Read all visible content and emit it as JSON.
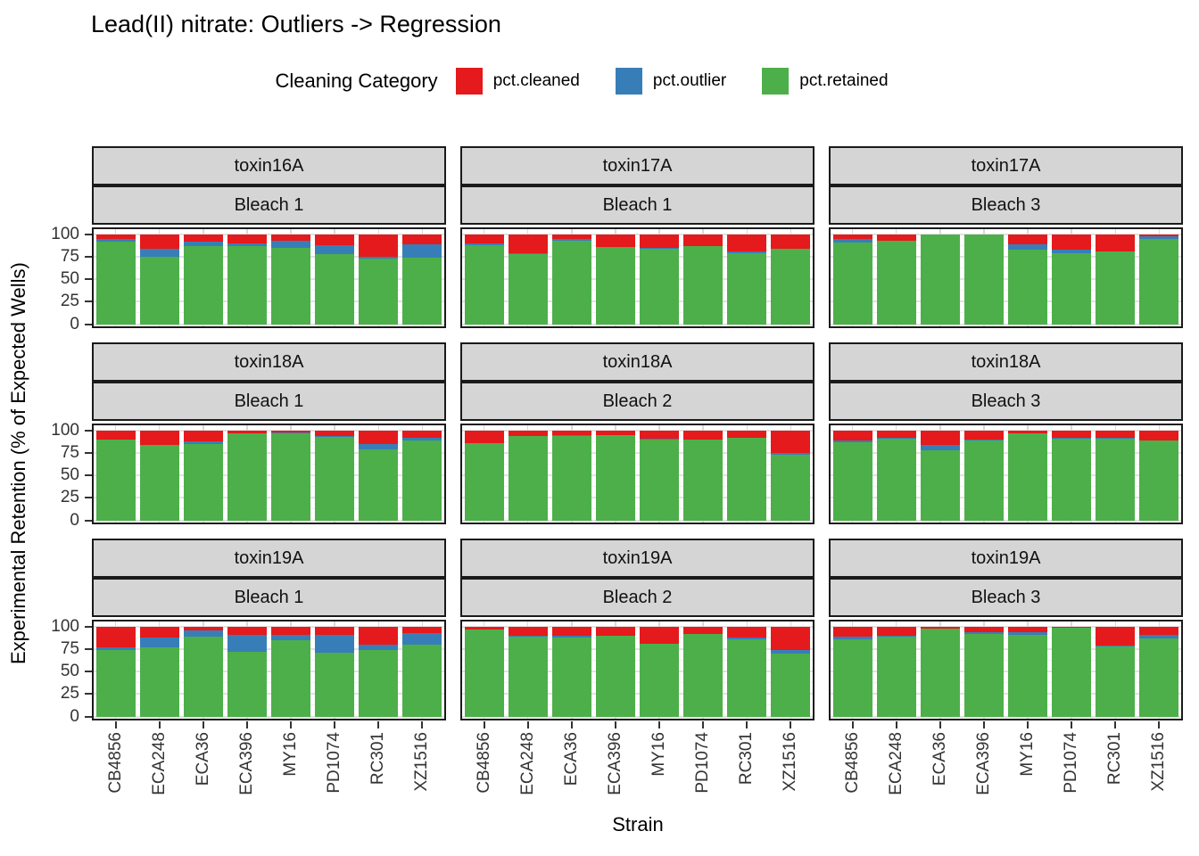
{
  "title": "Lead(II) nitrate: Outliers -> Regression",
  "legend": {
    "title": "Cleaning Category",
    "items": [
      {
        "label": "pct.cleaned",
        "color": "#E41A1C"
      },
      {
        "label": "pct.outlier",
        "color": "#377EB8"
      },
      {
        "label": "pct.retained",
        "color": "#4DAF4A"
      }
    ]
  },
  "axes": {
    "y_title": "Experimental Retention (% of Expected Wells)",
    "x_title": "Strain",
    "y_ticks": [
      100,
      75,
      50,
      25,
      0
    ]
  },
  "chart_data": {
    "type": "bar",
    "stacked": true,
    "title": "Lead(II) nitrate: Outliers -> Regression",
    "xlabel": "Strain",
    "ylabel": "Experimental Retention (% of Expected Wells)",
    "ylim": [
      0,
      100
    ],
    "grid": true,
    "legend_position": "top",
    "categories": [
      "CB4856",
      "ECA248",
      "ECA36",
      "ECA396",
      "MY16",
      "PD1074",
      "RC301",
      "XZ1516"
    ],
    "series_order": [
      "pct.retained",
      "pct.outlier",
      "pct.cleaned"
    ],
    "colors": {
      "pct.cleaned": "#E41A1C",
      "pct.outlier": "#377EB8",
      "pct.retained": "#4DAF4A"
    },
    "facet_rows": [
      "toxin",
      "bleach"
    ],
    "facets": [
      {
        "toxin": "toxin16A",
        "bleach": "Bleach 1",
        "values": {
          "pct.retained": [
            92,
            75,
            87,
            87,
            84.5,
            78,
            72.5,
            74
          ],
          "pct.outlier": [
            2.5,
            8.5,
            4.5,
            2.5,
            8,
            10,
            2.5,
            15
          ],
          "pct.cleaned": [
            5.5,
            16.5,
            8.5,
            10.5,
            7.5,
            12,
            25,
            11
          ]
        }
      },
      {
        "toxin": "toxin17A",
        "bleach": "Bleach 1",
        "values": {
          "pct.retained": [
            88,
            78,
            93,
            85.5,
            84,
            86.5,
            79,
            83.5
          ],
          "pct.outlier": [
            2,
            0.5,
            2,
            0.5,
            0.5,
            0.5,
            2,
            0.5
          ],
          "pct.cleaned": [
            10,
            21.5,
            5,
            14,
            15.5,
            13,
            19,
            16
          ]
        }
      },
      {
        "toxin": "toxin17A",
        "bleach": "Bleach 3",
        "values": {
          "pct.retained": [
            91,
            92.5,
            99.5,
            99.5,
            82.5,
            78.5,
            80.5,
            94.5
          ],
          "pct.outlier": [
            4,
            0.5,
            0,
            0,
            6,
            4.5,
            0.5,
            3
          ],
          "pct.cleaned": [
            5,
            7,
            0.5,
            0.5,
            11.5,
            17,
            19,
            2.5
          ]
        }
      },
      {
        "toxin": "toxin18A",
        "bleach": "Bleach 1",
        "values": {
          "pct.retained": [
            89.5,
            83.5,
            84.5,
            96.5,
            97,
            93,
            78.5,
            89
          ],
          "pct.outlier": [
            0.5,
            0.5,
            3,
            0.5,
            0.5,
            0.5,
            6.5,
            2.5
          ],
          "pct.cleaned": [
            10,
            16,
            12.5,
            3,
            2.5,
            6.5,
            15,
            8.5
          ]
        }
      },
      {
        "toxin": "toxin18A",
        "bleach": "Bleach 2",
        "values": {
          "pct.retained": [
            85.5,
            93.5,
            94,
            94.5,
            90,
            89.5,
            91.5,
            72.5
          ],
          "pct.outlier": [
            0.5,
            0.5,
            0.5,
            0.5,
            0.5,
            0.5,
            0.5,
            2
          ],
          "pct.cleaned": [
            14,
            6,
            5.5,
            5,
            9.5,
            10,
            8,
            25.5
          ]
        }
      },
      {
        "toxin": "toxin18A",
        "bleach": "Bleach 3",
        "values": {
          "pct.retained": [
            86.5,
            91,
            78,
            89,
            96.5,
            91,
            91,
            88.5
          ],
          "pct.outlier": [
            2.5,
            0.5,
            5.5,
            0.5,
            0.5,
            0.5,
            0.5,
            0.5
          ],
          "pct.cleaned": [
            11,
            8.5,
            16.5,
            10.5,
            3,
            8.5,
            8.5,
            11
          ]
        }
      },
      {
        "toxin": "toxin19A",
        "bleach": "Bleach 1",
        "values": {
          "pct.retained": [
            73.5,
            76.5,
            88.5,
            71.5,
            85,
            71,
            73.5,
            80
          ],
          "pct.outlier": [
            3,
            11,
            7.5,
            19,
            6,
            19.5,
            6,
            13
          ],
          "pct.cleaned": [
            23.5,
            12.5,
            4,
            9.5,
            9,
            9.5,
            20.5,
            7
          ]
        }
      },
      {
        "toxin": "toxin19A",
        "bleach": "Bleach 2",
        "values": {
          "pct.retained": [
            96.5,
            89,
            87.5,
            89.5,
            80.5,
            91.5,
            86,
            69.5
          ],
          "pct.outlier": [
            0.5,
            0.5,
            2.5,
            0.5,
            0.5,
            0.5,
            2,
            4.5
          ],
          "pct.cleaned": [
            3,
            10.5,
            10,
            10,
            19,
            8,
            12,
            26
          ]
        }
      },
      {
        "toxin": "toxin19A",
        "bleach": "Bleach 3",
        "values": {
          "pct.retained": [
            86,
            89,
            97.5,
            91.5,
            91,
            98.5,
            78,
            87
          ],
          "pct.outlier": [
            2.5,
            0.5,
            0,
            2.5,
            2.5,
            0,
            0.5,
            3.5
          ],
          "pct.cleaned": [
            11.5,
            10.5,
            2.5,
            6,
            6.5,
            1.5,
            21.5,
            9.5
          ]
        }
      }
    ]
  }
}
